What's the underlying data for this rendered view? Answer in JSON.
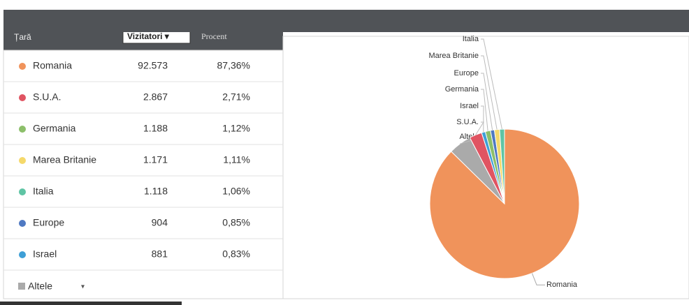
{
  "table": {
    "headers": [
      "Țară",
      "Vizitatori ▾",
      "Procent"
    ],
    "rows": [
      {
        "name": "Romania",
        "visitors": "92.573",
        "percent": "87,36%",
        "color": "#f0935b"
      },
      {
        "name": "S.U.A.",
        "visitors": "2.867",
        "percent": "2,71%",
        "color": "#e05462"
      },
      {
        "name": "Germania",
        "visitors": "1.188",
        "percent": "1,12%",
        "color": "#8cbf6a"
      },
      {
        "name": "Marea Britanie",
        "visitors": "1.171",
        "percent": "1,11%",
        "color": "#f5d96b"
      },
      {
        "name": "Italia",
        "visitors": "1.118",
        "percent": "1,06%",
        "color": "#5fc4a4"
      },
      {
        "name": "Europe",
        "visitors": "904",
        "percent": "0,85%",
        "color": "#4f79c2"
      },
      {
        "name": "Israel",
        "visitors": "881",
        "percent": "0,83%",
        "color": "#3e9fd6"
      }
    ],
    "other": {
      "name": "Altele",
      "menu": "▾",
      "color": "#aaaaaa"
    }
  },
  "pie": {
    "labels": [
      "Romania",
      "Altele",
      "S.U.A.",
      "Israel",
      "Germania",
      "Europe",
      "Marea Britanie",
      "Italia"
    ],
    "values": [
      87.36,
      4.96,
      2.71,
      0.83,
      1.12,
      0.85,
      1.11,
      1.06
    ],
    "colors": [
      "#f0935b",
      "#aaaaaa",
      "#e05462",
      "#3e9fd6",
      "#8cbf6a",
      "#4f79c2",
      "#f5d96b",
      "#5fc4a4"
    ]
  }
}
